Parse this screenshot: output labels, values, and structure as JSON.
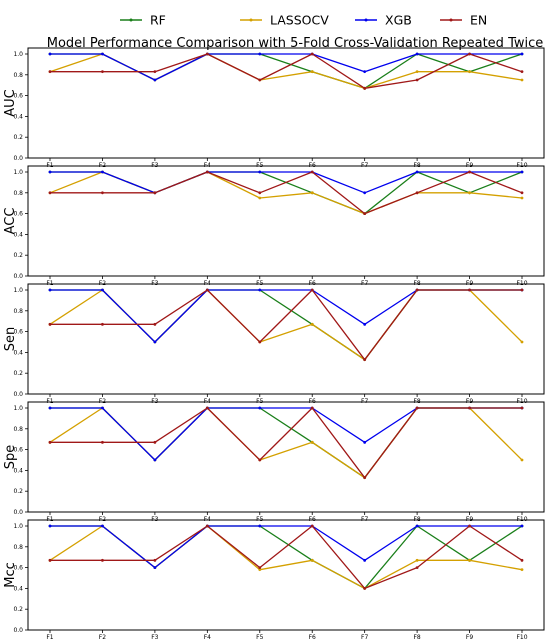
{
  "chart_data": {
    "type": "line",
    "title": "Model Performance Comparison with 5-Fold Cross-Validation Repeated Twice",
    "categories": [
      "F1",
      "F2",
      "F3",
      "F4",
      "F5",
      "F6",
      "F7",
      "F8",
      "F9",
      "F10"
    ],
    "ylim": [
      0,
      1.0
    ],
    "yticks": [
      "0.0",
      "0.2",
      "0.4",
      "0.6",
      "0.8",
      "1.0"
    ],
    "legend": {
      "placement": "top-center",
      "series": [
        {
          "name": "RF",
          "color": "#1a7f1a"
        },
        {
          "name": "LASSOCV",
          "color": "#d4a000"
        },
        {
          "name": "XGB",
          "color": "#0000ee"
        },
        {
          "name": "EN",
          "color": "#a01818"
        }
      ]
    },
    "panels": [
      {
        "ylabel": "AUC",
        "series": [
          {
            "name": "RF",
            "values": [
              1.0,
              1.0,
              0.75,
              1.0,
              1.0,
              0.83,
              0.67,
              1.0,
              0.83,
              1.0
            ]
          },
          {
            "name": "LASSOCV",
            "values": [
              0.83,
              1.0,
              0.75,
              1.0,
              0.75,
              0.83,
              0.67,
              0.83,
              0.83,
              0.75
            ]
          },
          {
            "name": "XGB",
            "values": [
              1.0,
              1.0,
              0.75,
              1.0,
              1.0,
              1.0,
              0.83,
              1.0,
              1.0,
              1.0
            ]
          },
          {
            "name": "EN",
            "values": [
              0.83,
              0.83,
              0.83,
              1.0,
              0.75,
              1.0,
              0.67,
              0.75,
              1.0,
              0.83
            ]
          }
        ]
      },
      {
        "ylabel": "ACC",
        "series": [
          {
            "name": "RF",
            "values": [
              1.0,
              1.0,
              0.8,
              1.0,
              1.0,
              0.8,
              0.6,
              1.0,
              0.8,
              1.0
            ]
          },
          {
            "name": "LASSOCV",
            "values": [
              0.8,
              1.0,
              0.8,
              1.0,
              0.75,
              0.8,
              0.6,
              0.8,
              0.8,
              0.75
            ]
          },
          {
            "name": "XGB",
            "values": [
              1.0,
              1.0,
              0.8,
              1.0,
              1.0,
              1.0,
              0.8,
              1.0,
              1.0,
              1.0
            ]
          },
          {
            "name": "EN",
            "values": [
              0.8,
              0.8,
              0.8,
              1.0,
              0.8,
              1.0,
              0.6,
              0.8,
              1.0,
              0.8
            ]
          }
        ]
      },
      {
        "ylabel": "Sen",
        "series": [
          {
            "name": "RF",
            "values": [
              1.0,
              1.0,
              0.5,
              1.0,
              1.0,
              0.67,
              0.33,
              1.0,
              1.0,
              1.0
            ]
          },
          {
            "name": "LASSOCV",
            "values": [
              0.67,
              1.0,
              0.5,
              1.0,
              0.5,
              0.67,
              0.33,
              1.0,
              1.0,
              0.5
            ]
          },
          {
            "name": "XGB",
            "values": [
              1.0,
              1.0,
              0.5,
              1.0,
              1.0,
              1.0,
              0.67,
              1.0,
              1.0,
              1.0
            ]
          },
          {
            "name": "EN",
            "values": [
              0.67,
              0.67,
              0.67,
              1.0,
              0.5,
              1.0,
              0.33,
              1.0,
              1.0,
              1.0
            ]
          }
        ]
      },
      {
        "ylabel": "Spe",
        "series": [
          {
            "name": "RF",
            "values": [
              1.0,
              1.0,
              0.5,
              1.0,
              1.0,
              0.67,
              0.33,
              1.0,
              1.0,
              1.0
            ]
          },
          {
            "name": "LASSOCV",
            "values": [
              0.67,
              1.0,
              0.5,
              1.0,
              0.5,
              0.67,
              0.33,
              1.0,
              1.0,
              0.5
            ]
          },
          {
            "name": "XGB",
            "values": [
              1.0,
              1.0,
              0.5,
              1.0,
              1.0,
              1.0,
              0.67,
              1.0,
              1.0,
              1.0
            ]
          },
          {
            "name": "EN",
            "values": [
              0.67,
              0.67,
              0.67,
              1.0,
              0.5,
              1.0,
              0.33,
              1.0,
              1.0,
              1.0
            ]
          }
        ]
      },
      {
        "ylabel": "Mcc",
        "series": [
          {
            "name": "RF",
            "values": [
              1.0,
              1.0,
              0.6,
              1.0,
              1.0,
              0.67,
              0.4,
              1.0,
              0.67,
              1.0
            ]
          },
          {
            "name": "LASSOCV",
            "values": [
              0.67,
              1.0,
              0.6,
              1.0,
              0.58,
              0.67,
              0.4,
              0.67,
              0.67,
              0.58
            ]
          },
          {
            "name": "XGB",
            "values": [
              1.0,
              1.0,
              0.6,
              1.0,
              1.0,
              1.0,
              0.67,
              1.0,
              1.0,
              1.0
            ]
          },
          {
            "name": "EN",
            "values": [
              0.67,
              0.67,
              0.67,
              1.0,
              0.6,
              1.0,
              0.4,
              0.6,
              1.0,
              0.67
            ]
          }
        ]
      }
    ]
  }
}
